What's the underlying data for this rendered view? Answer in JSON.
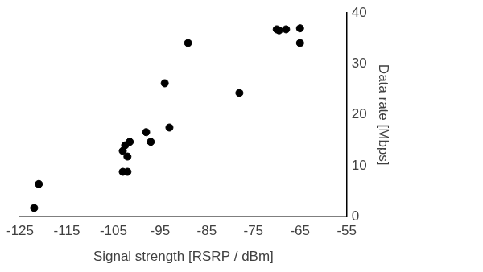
{
  "chart_data": {
    "type": "scatter",
    "x_label": "Signal strength [RSRP / dBm]",
    "y_label": "Data rate [Mbps]",
    "x": [
      -122,
      -121,
      -103,
      -102.5,
      -102,
      -103,
      -102,
      -101.5,
      -98,
      -97,
      -94,
      -93,
      -89,
      -78,
      -70,
      -69.5,
      -68,
      -65,
      -65
    ],
    "values": [
      1.7,
      6.4,
      12.9,
      14,
      11.8,
      8.8,
      8.8,
      14.7,
      16.6,
      14.7,
      26.2,
      17.5,
      34.1,
      24.3,
      36.8,
      36.6,
      36.8,
      37,
      34.1
    ],
    "color": "#000000",
    "marker": "circle",
    "grid": false,
    "xlim": [
      -125,
      -55
    ],
    "xticks": [
      -125,
      -115,
      -105,
      -95,
      -85,
      -75,
      -65,
      -55
    ],
    "ylim": [
      0,
      40
    ],
    "yticks": [
      0,
      10,
      20,
      30,
      40
    ]
  }
}
